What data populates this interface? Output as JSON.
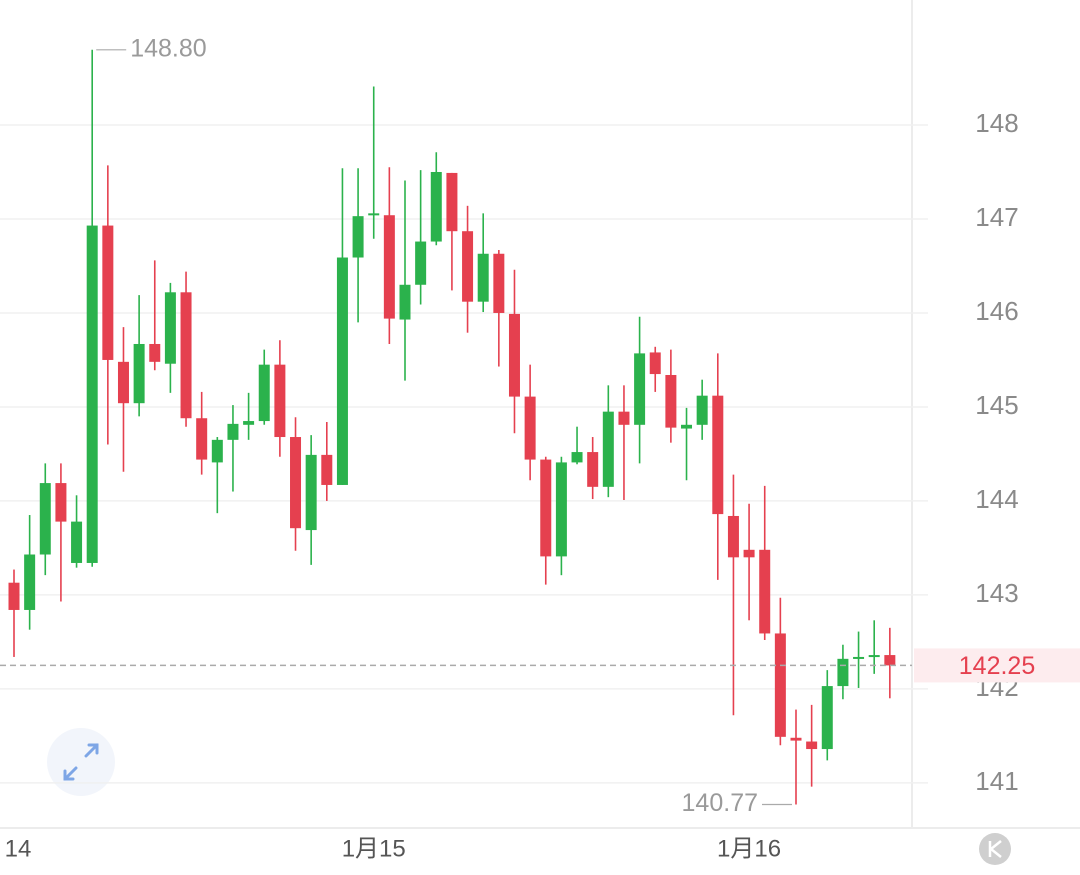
{
  "chart_data": {
    "type": "candlestick",
    "categories": [
      "14",
      null,
      null,
      null,
      null,
      null,
      null,
      null,
      null,
      null,
      null,
      null,
      null,
      null,
      null,
      null,
      null,
      null,
      null,
      null,
      null,
      null,
      null,
      "1月15",
      null,
      null,
      null,
      null,
      null,
      null,
      null,
      null,
      null,
      null,
      null,
      null,
      null,
      null,
      null,
      null,
      null,
      null,
      null,
      null,
      null,
      null,
      null,
      "1月16",
      null,
      null,
      null,
      null,
      null,
      null,
      null,
      null,
      null
    ],
    "open": [
      143.13,
      142.84,
      143.43,
      144.19,
      143.34,
      143.34,
      146.93,
      145.48,
      145.04,
      145.67,
      145.46,
      146.22,
      144.88,
      144.41,
      144.65,
      144.81,
      144.85,
      145.45,
      144.68,
      143.69,
      144.49,
      144.17,
      146.59,
      147.04,
      147.04,
      145.93,
      146.3,
      146.76,
      147.49,
      146.87,
      146.12,
      146.63,
      145.99,
      145.11,
      144.44,
      143.41,
      144.41,
      144.52,
      144.15,
      144.95,
      144.81,
      145.58,
      145.34,
      144.77,
      144.81,
      145.12,
      143.84,
      143.48,
      143.48,
      142.59,
      141.48,
      141.44,
      141.36,
      142.03,
      142.32,
      142.34,
      142.36
    ],
    "high": [
      143.27,
      143.85,
      144.4,
      144.4,
      144.06,
      148.8,
      147.57,
      145.85,
      146.19,
      146.56,
      146.32,
      146.44,
      145.16,
      144.68,
      145.02,
      145.15,
      145.61,
      145.71,
      144.89,
      144.7,
      144.84,
      147.54,
      147.54,
      148.41,
      147.55,
      147.41,
      147.52,
      147.71,
      147.49,
      147.14,
      147.06,
      146.67,
      146.46,
      145.45,
      144.47,
      144.47,
      144.79,
      144.68,
      145.23,
      145.23,
      145.96,
      145.64,
      145.61,
      144.99,
      145.29,
      145.57,
      144.28,
      143.97,
      144.16,
      142.97,
      141.78,
      141.83,
      142.2,
      142.47,
      142.61,
      142.73,
      142.65
    ],
    "low": [
      142.34,
      142.63,
      143.21,
      142.93,
      143.29,
      143.3,
      144.6,
      144.31,
      144.9,
      145.39,
      145.15,
      144.79,
      144.28,
      143.87,
      144.1,
      144.65,
      144.81,
      144.47,
      143.47,
      143.32,
      144.0,
      144.17,
      145.9,
      146.79,
      145.67,
      145.28,
      146.09,
      146.72,
      146.24,
      145.79,
      146.01,
      145.43,
      144.72,
      144.22,
      143.11,
      143.21,
      144.39,
      144.02,
      144.04,
      144.01,
      144.4,
      145.16,
      144.62,
      144.22,
      144.65,
      143.16,
      141.72,
      142.73,
      142.52,
      141.4,
      140.77,
      140.96,
      141.24,
      141.89,
      142.01,
      142.16,
      141.9
    ],
    "close": [
      142.84,
      143.43,
      144.19,
      143.78,
      143.78,
      146.93,
      145.5,
      145.04,
      145.67,
      145.48,
      146.22,
      144.88,
      144.44,
      144.65,
      144.82,
      144.85,
      145.45,
      144.68,
      143.71,
      144.49,
      144.17,
      146.59,
      147.03,
      147.06,
      145.94,
      146.3,
      146.76,
      147.5,
      146.87,
      146.12,
      146.63,
      146.0,
      145.11,
      144.44,
      143.41,
      144.41,
      144.52,
      144.15,
      144.95,
      144.81,
      145.57,
      145.35,
      144.78,
      144.81,
      145.12,
      143.86,
      143.4,
      143.4,
      142.59,
      141.49,
      141.45,
      141.36,
      142.03,
      142.32,
      142.34,
      142.36,
      142.25
    ],
    "up_color": "#2bb24c",
    "down_color": "#e5404f",
    "ylim": [
      140.52,
      149.33
    ],
    "yticks": [
      141,
      142,
      143,
      144,
      145,
      146,
      147,
      148
    ],
    "grid": true,
    "annotations": [
      {
        "value": 148.8,
        "label": "148.80",
        "index": 5
      },
      {
        "value": 140.77,
        "label": "140.77",
        "index": 50
      }
    ],
    "last_price": 142.25
  }
}
